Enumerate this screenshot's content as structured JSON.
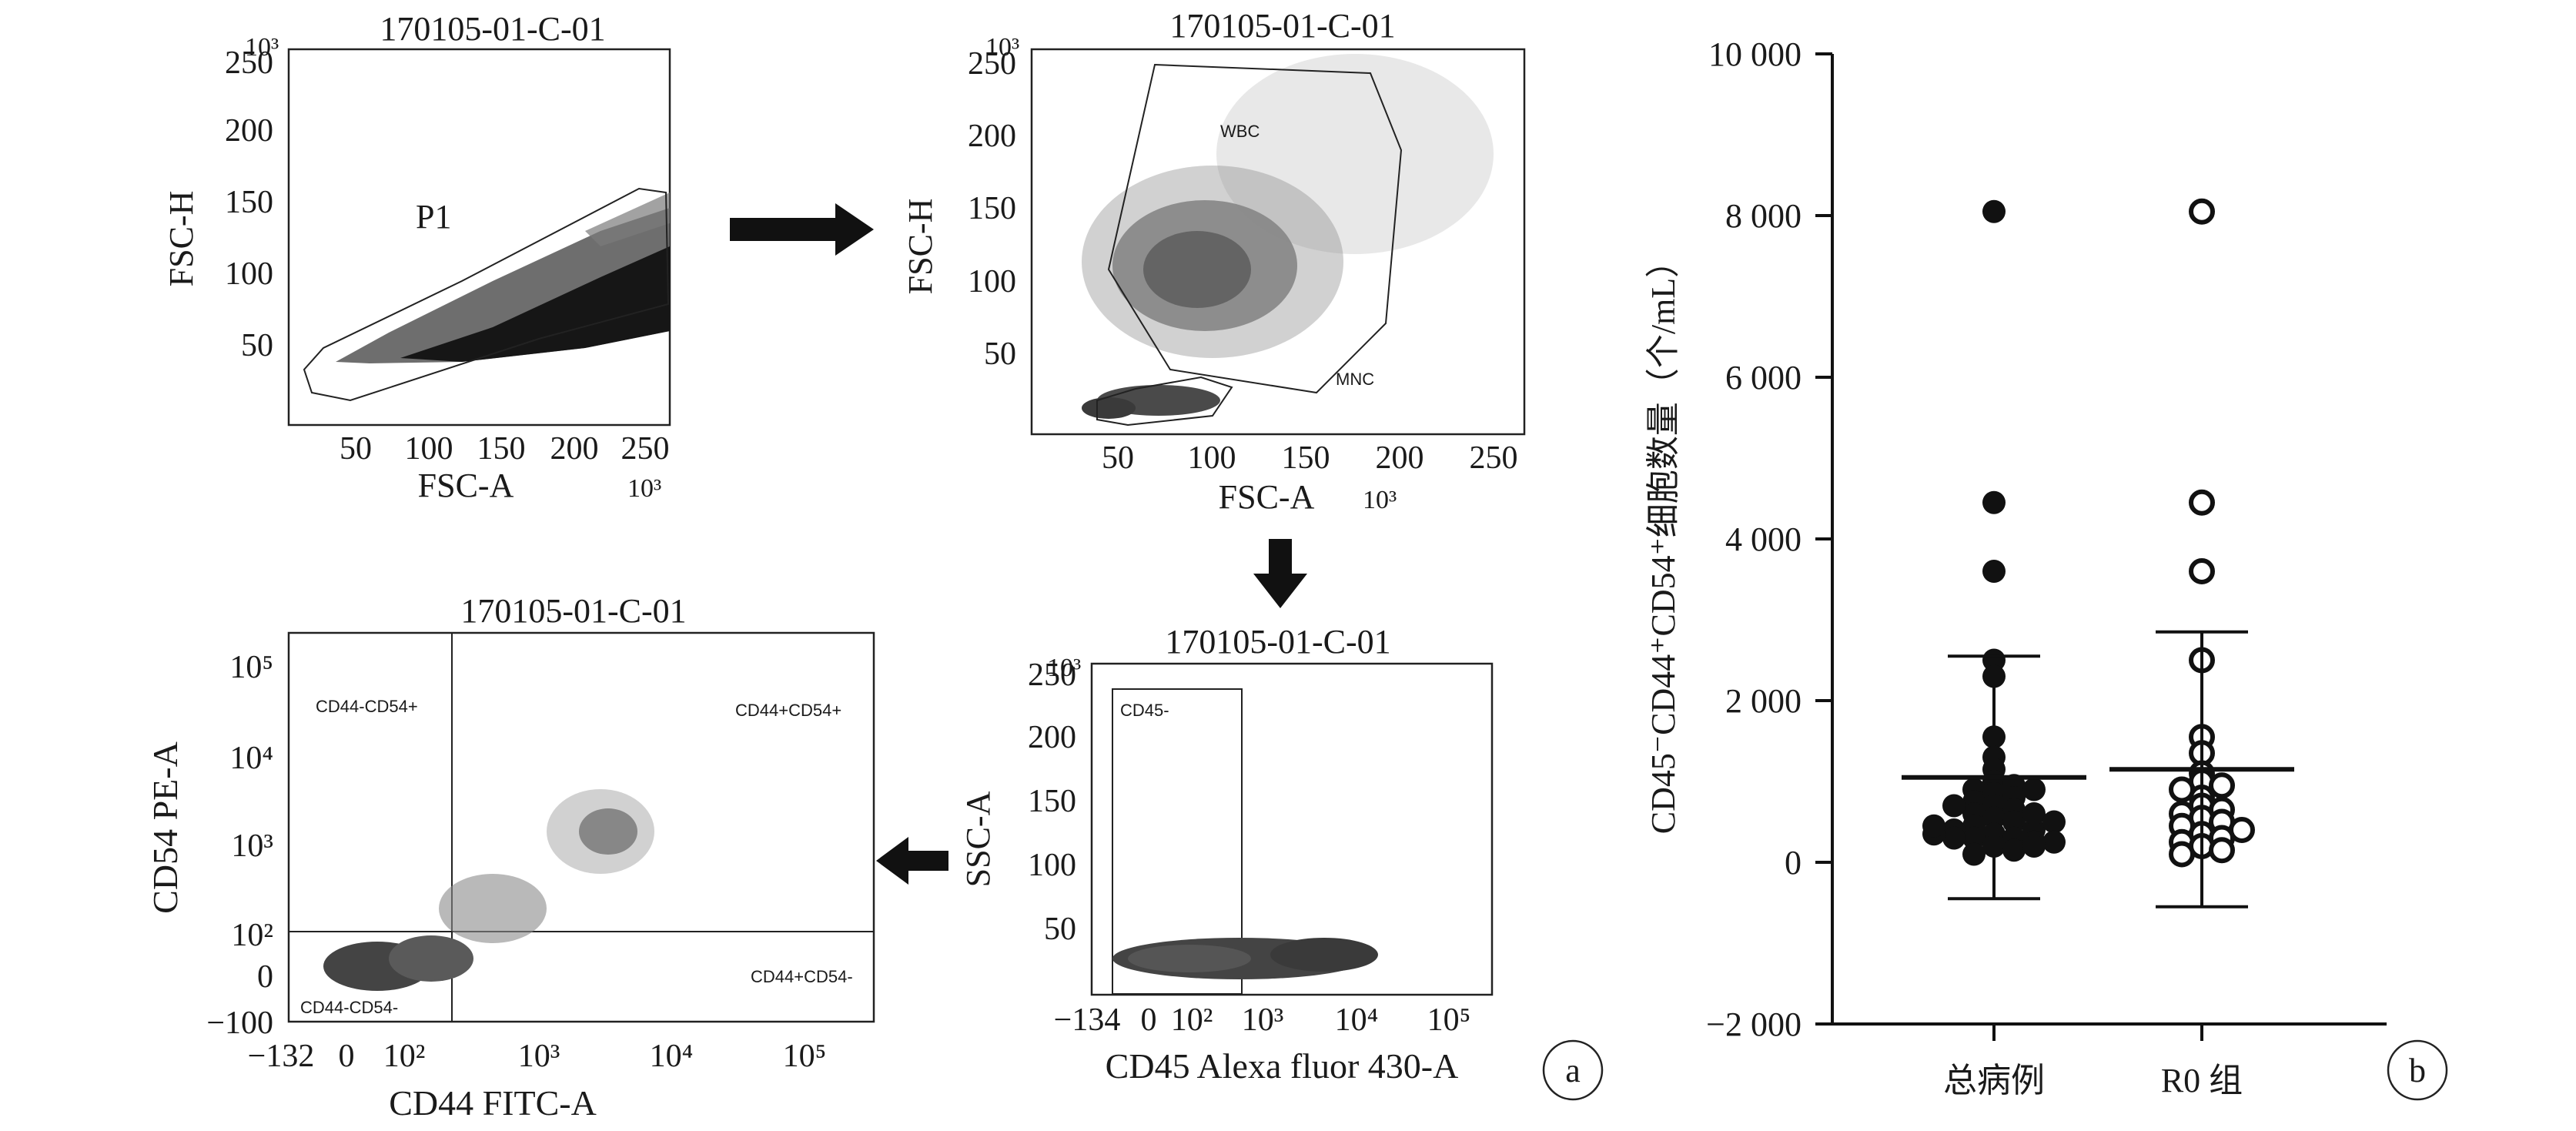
{
  "panels": {
    "a": {
      "label": "a",
      "plots": [
        {
          "title": "170105-01-C-01",
          "xlabel": "FSC-A",
          "ylabel": "FSC-H",
          "x_exp": "10³",
          "y_exp": "10³",
          "xticks": [
            "50",
            "100",
            "150",
            "200",
            "250"
          ],
          "yticks": [
            "50",
            "100",
            "150",
            "200",
            "250"
          ],
          "gates": [
            "P1"
          ]
        },
        {
          "title": "170105-01-C-01",
          "xlabel": "FSC-A",
          "ylabel": "FSC-H",
          "x_exp": "10³",
          "y_exp": "10³",
          "xticks": [
            "50",
            "100",
            "150",
            "200",
            "250"
          ],
          "yticks": [
            "50",
            "100",
            "150",
            "200",
            "250"
          ],
          "gates": [
            "WBC",
            "MNC"
          ]
        },
        {
          "title": "170105-01-C-01",
          "xlabel": "CD45 Alexa fluor 430-A",
          "ylabel": "SSC-A",
          "y_exp": "10³",
          "xticks": [
            "−134",
            "0",
            "10²",
            "10³",
            "10⁴",
            "10⁵"
          ],
          "yticks": [
            "50",
            "100",
            "150",
            "200",
            "250"
          ],
          "gates": [
            "CD45-"
          ]
        },
        {
          "title": "170105-01-C-01",
          "xlabel": "CD44 FITC-A",
          "ylabel": "CD54 PE-A",
          "xticks": [
            "−132",
            "0",
            "10²",
            "10³",
            "10⁴",
            "10⁵"
          ],
          "yticks": [
            "−100",
            "0",
            "10²",
            "10³",
            "10⁴",
            "10⁵"
          ],
          "gates": [
            "CD44-CD54+",
            "CD44+CD54+",
            "CD44-CD54-",
            "CD44+CD54-"
          ]
        }
      ]
    },
    "b": {
      "label": "b"
    }
  },
  "chart_data": {
    "type": "scatter",
    "ylabel": "CD45⁻CD44⁺CD54⁺细胞数量（个/mL）",
    "ylim": [
      -2000,
      10000
    ],
    "yticks": [
      "−2 000",
      "0",
      "2 000",
      "4 000",
      "6 000",
      "8 000",
      "10 000"
    ],
    "ytick_values": [
      -2000,
      0,
      2000,
      4000,
      6000,
      8000,
      10000
    ],
    "categories": [
      "总病例",
      "R0 组"
    ],
    "series": [
      {
        "category": "总病例",
        "marker": "filled",
        "mean": 1050,
        "sd_low": -450,
        "sd_high": 2550,
        "values": [
          8050,
          4450,
          3600,
          2500,
          2300,
          1550,
          1300,
          1150,
          1000,
          950,
          900,
          850,
          800,
          750,
          700,
          650,
          600,
          550,
          500,
          450,
          400,
          350,
          300,
          300,
          250,
          200,
          150,
          100,
          600,
          700,
          400,
          500,
          300,
          250,
          200,
          900,
          350,
          450
        ]
      },
      {
        "category": "R0 组",
        "marker": "open",
        "mean": 1150,
        "sd_low": -550,
        "sd_high": 2850,
        "values": [
          8050,
          4450,
          3600,
          2500,
          1550,
          1350,
          1100,
          1000,
          950,
          900,
          800,
          700,
          650,
          600,
          550,
          500,
          450,
          400,
          350,
          300,
          250,
          200,
          150,
          100
        ]
      }
    ]
  }
}
